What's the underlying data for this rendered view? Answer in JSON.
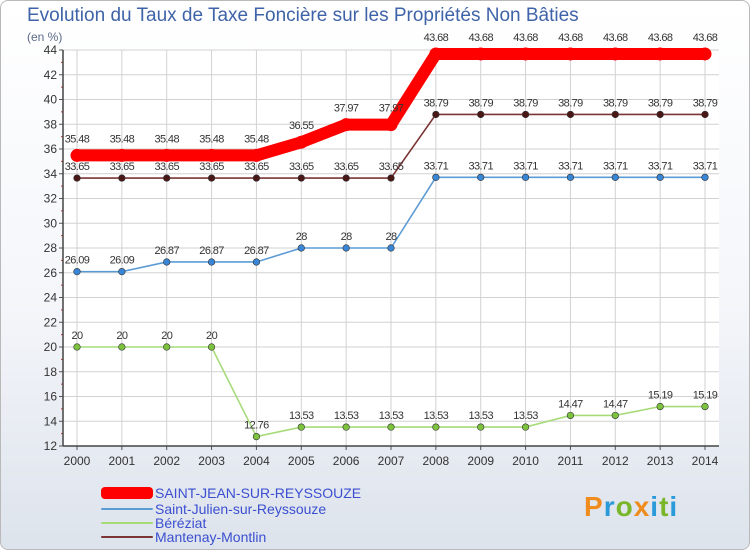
{
  "title": "Evolution du Taux de Taxe Foncière sur les Propriétés Non Bâties",
  "unit_label": "(en %)",
  "logo": {
    "text": "Proxiti",
    "colors": [
      "#f08c1e",
      "#2a9ad8",
      "#7ab62a",
      "#f08c1e",
      "#2a9ad8",
      "#7ab62a",
      "#2a9ad8"
    ]
  },
  "chart_data": {
    "type": "line",
    "title": "Evolution du Taux de Taxe Foncière sur les Propriétés Non Bâties",
    "ylabel": "(en %)",
    "xlabel": "",
    "ylim": [
      12,
      44
    ],
    "yticks": [
      12,
      14,
      16,
      18,
      20,
      22,
      24,
      26,
      28,
      30,
      32,
      34,
      36,
      38,
      40,
      42,
      44
    ],
    "x": [
      "2000",
      "2001",
      "2002",
      "2003",
      "2004",
      "2005",
      "2006",
      "2007",
      "2008",
      "2009",
      "2010",
      "2011",
      "2012",
      "2013",
      "2014"
    ],
    "grid": true,
    "legend_position": "bottom-left",
    "series": [
      {
        "name": "SAINT-JEAN-SUR-REYSSOUZE",
        "color": "#ff0000",
        "highlight": true,
        "values": [
          35.48,
          35.48,
          35.48,
          35.48,
          35.48,
          36.55,
          37.97,
          37.97,
          43.68,
          43.68,
          43.68,
          43.68,
          43.68,
          43.68,
          43.68
        ],
        "labels": [
          "35.48",
          "35.48",
          "35.48",
          "35.48",
          "35.48",
          "36.55",
          "37.97",
          "37.97",
          "43.68",
          "43.68",
          "43.68",
          "43.68",
          "43.68",
          "43.68",
          "43.68"
        ]
      },
      {
        "name": "Saint-Julien-sur-Reyssouze",
        "color": "#5b9bd5",
        "dot": "#3a86d6",
        "values": [
          26.09,
          26.09,
          26.87,
          26.87,
          26.87,
          28,
          28,
          28,
          33.71,
          33.71,
          33.71,
          33.71,
          33.71,
          33.71,
          33.71
        ],
        "labels": [
          "26.09",
          "26.09",
          "26.87",
          "26.87",
          "26.87",
          "28",
          "28",
          "28",
          "33.71",
          "33.71",
          "33.71",
          "33.71",
          "33.71",
          "33.71",
          "33.71"
        ]
      },
      {
        "name": "Béréziat",
        "color": "#a6db78",
        "dot": "#7cc23e",
        "values": [
          20,
          20,
          20,
          20,
          12.76,
          13.53,
          13.53,
          13.53,
          13.53,
          13.53,
          13.53,
          14.47,
          14.47,
          15.19,
          15.19
        ],
        "labels": [
          "20",
          "20",
          "20",
          "20",
          "12.76",
          "13.53",
          "13.53",
          "13.53",
          "13.53",
          "13.53",
          "13.53",
          "14.47",
          "14.47",
          "15.19",
          "15.19"
        ]
      },
      {
        "name": "Mantenay-Montlin",
        "color": "#7b3535",
        "dot": "#4a1717",
        "values": [
          33.65,
          33.65,
          33.65,
          33.65,
          33.65,
          33.65,
          33.65,
          33.65,
          38.79,
          38.79,
          38.79,
          38.79,
          38.79,
          38.79,
          38.79
        ],
        "labels": [
          "33.65",
          "33.65",
          "33.65",
          "33.65",
          "33.65",
          "33.65",
          "33.65",
          "33.65",
          "38.79",
          "38.79",
          "38.79",
          "38.79",
          "38.79",
          "38.79",
          "38.79"
        ]
      }
    ]
  }
}
